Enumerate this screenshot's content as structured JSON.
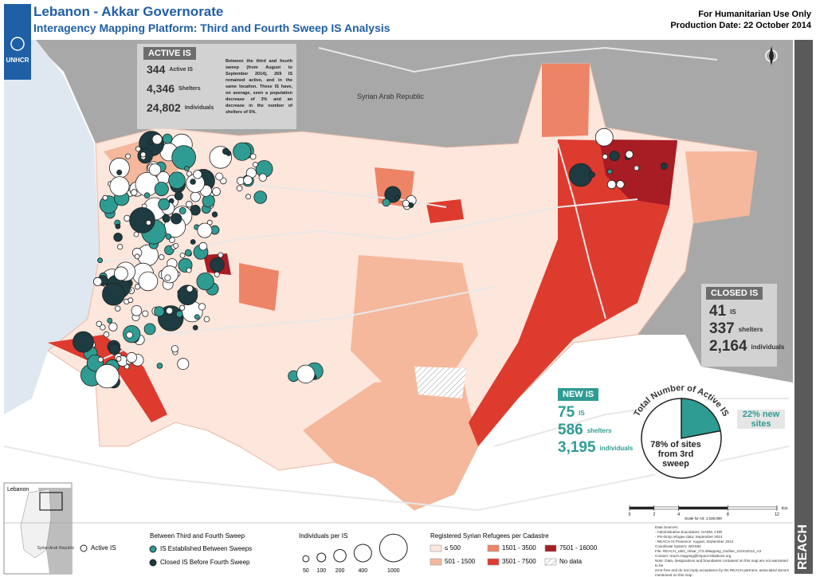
{
  "header": {
    "title": "Lebanon - Akkar Governorate",
    "subtitle": "Interagency Mapping Platform: Third and Fourth Sweep IS Analysis",
    "notice": "For Humanitarian Use Only",
    "production_date": "Production Date: 22 October 2014"
  },
  "logo": "UNHCR",
  "map_labels": {
    "syria": "Syrian Arab Republic"
  },
  "active_is": {
    "title": "ACTIVE IS",
    "stats": [
      {
        "value": "344",
        "label": "Active IS"
      },
      {
        "value": "4,346",
        "label": "Shelters"
      },
      {
        "value": "24,802",
        "label": "Individuals"
      }
    ],
    "text": "Between the third and fourth sweep (from August to September 2014), 269 IS remained active, and in the same location. These IS have, on average, seen a population decrease of 3% and an decrease in the number of shelters of 5%."
  },
  "closed_is": {
    "title": "CLOSED IS",
    "stats": [
      {
        "value": "41",
        "label": "IS"
      },
      {
        "value": "337",
        "label": "shelters"
      },
      {
        "value": "2,164",
        "label": "individuals"
      }
    ]
  },
  "new_is": {
    "title": "NEW IS",
    "stats": [
      {
        "value": "75",
        "label": "IS"
      },
      {
        "value": "586",
        "label": "shelters"
      },
      {
        "value": "3,195",
        "label": "individuals"
      }
    ]
  },
  "pie": {
    "title": "Total Number of Active IS",
    "values": [
      22,
      78
    ],
    "colors": [
      "#2f9c93",
      "#ffffff"
    ],
    "labels": [
      "22% new sites",
      "78% of sites from 3rd sweep"
    ]
  },
  "legend": {
    "active": "Active IS",
    "sweep_title": "Between Third and Fourth Sweep",
    "established": "IS Established Between Sweeps",
    "closed": "Closed IS Before Fourth Sweep",
    "size_title": "Individuals per IS",
    "sizes": [
      50,
      100,
      200,
      400,
      1000
    ],
    "refugee_title": "Registered Syrian Refugees per Cadastre",
    "classes": [
      {
        "label": "≤ 500",
        "color": "#fde6dc"
      },
      {
        "label": "501 - 1500",
        "color": "#f5b89c"
      },
      {
        "label": "1501 - 3500",
        "color": "#ee8466"
      },
      {
        "label": "3501 - 7500",
        "color": "#de3b2f"
      },
      {
        "label": "7501 - 16000",
        "color": "#a81c24"
      },
      {
        "label": "No data",
        "color": "#ffffff"
      }
    ]
  },
  "inset": {
    "lebanon": "Lebanon",
    "syria": "Syrian Arab Republic"
  },
  "scale": {
    "ticks": [
      0,
      2,
      4,
      8,
      12
    ],
    "unit": "Km",
    "note": "Scale for A3: 1:100,000"
  },
  "sources": [
    "Data Sources:",
    "- Administrative boundaries: GADM, CDR",
    "- Pin-Drop refugee data: September 2014",
    "- REACH IS Presence: August, September 2014",
    "Coordinate System: WGS84",
    "File: REACH_LBN_Akkar_IT3-4Mapping_Outline_21Oct2014_A3",
    "Contact: reach.mapping@impact-initiatives.org",
    "Note: Data, designations and boundaries contained on this map are not warranted to be",
    "error-free and do not imply acceptance by the REACH partners, associated donors",
    "mentioned on this map."
  ],
  "brand": "REACH"
}
